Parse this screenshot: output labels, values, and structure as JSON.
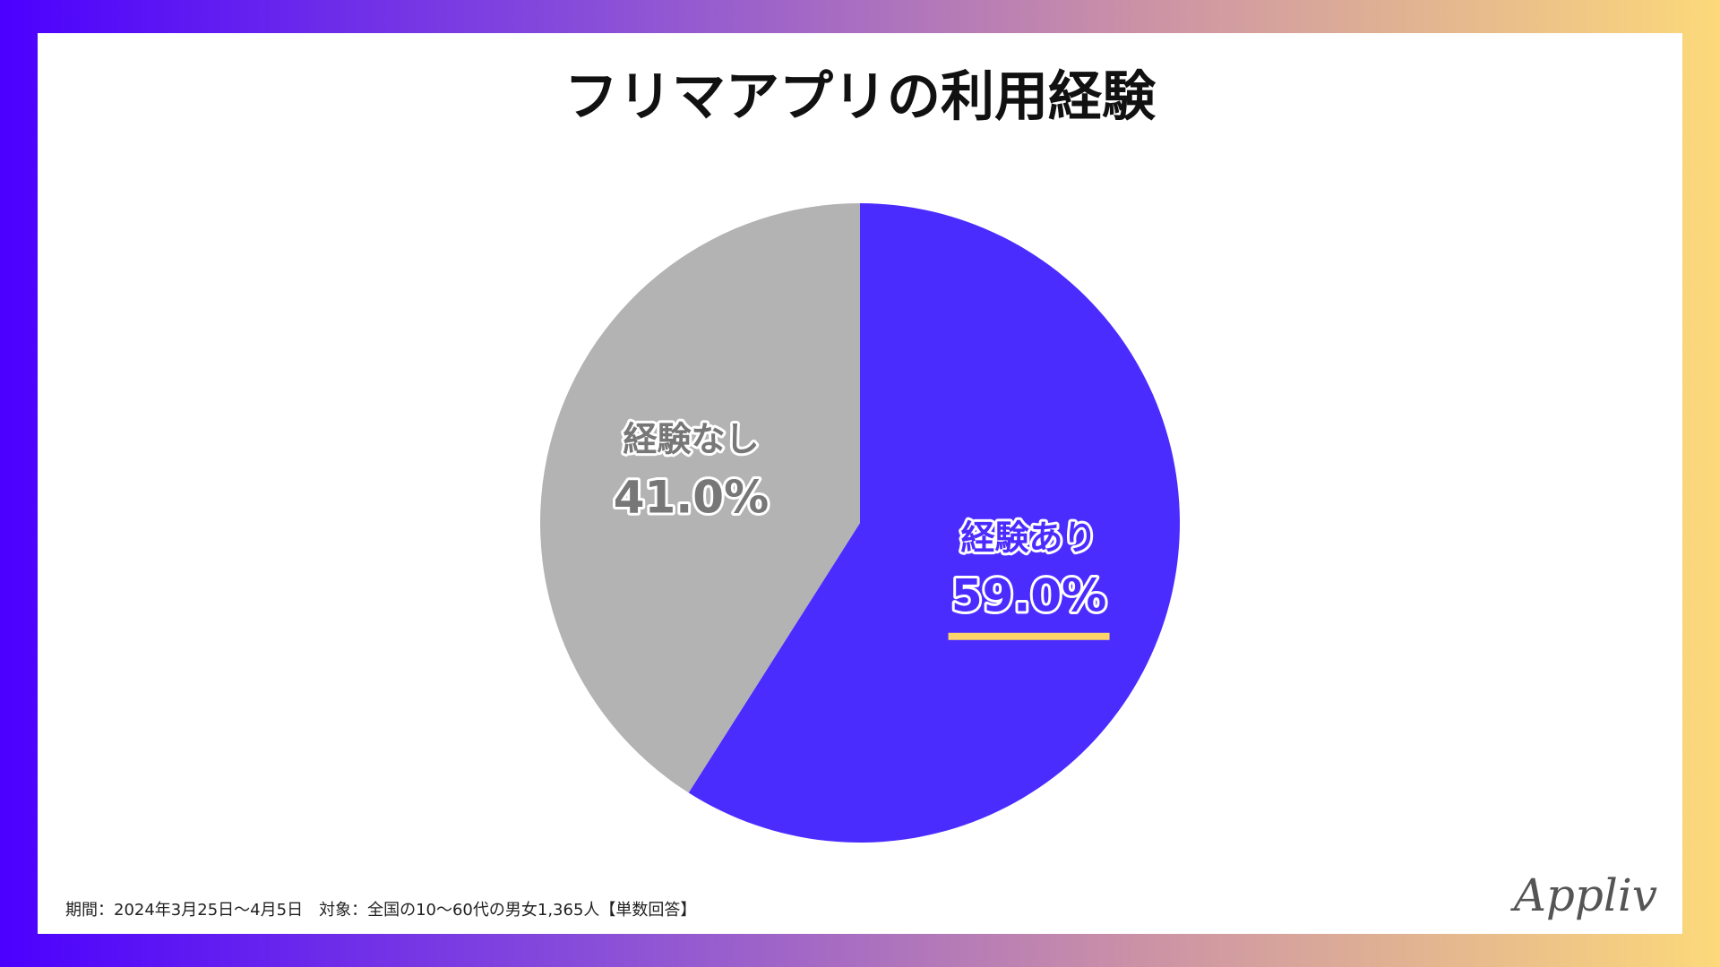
{
  "chart_data": {
    "type": "pie",
    "title": "フリマアプリの利用経験",
    "categories": [
      "経験あり",
      "経験なし"
    ],
    "values": [
      59.0,
      41.0
    ],
    "value_labels": [
      "59.0%",
      "41.0%"
    ],
    "colors": [
      "#4b2cff",
      "#b3b3b3"
    ]
  },
  "footnote": "期間：2024年3月25日〜4月5日　対象：全国の10〜60代の男女1,365人【単数回答】",
  "logo": "Appliv"
}
